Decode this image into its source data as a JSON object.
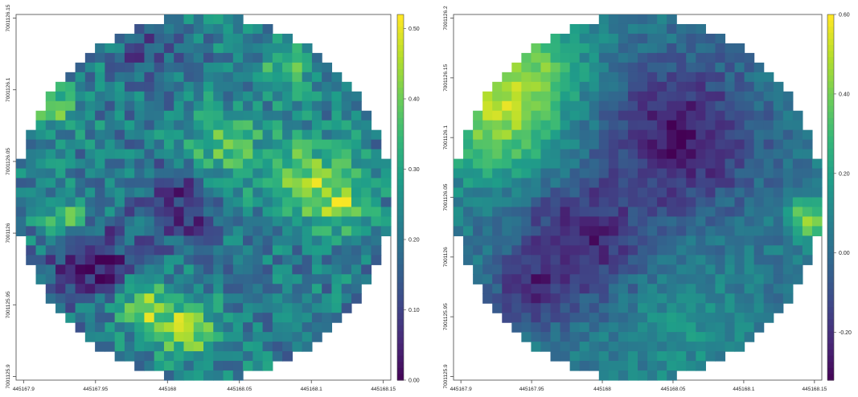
{
  "chart_data": [
    {
      "type": "heatmap",
      "title": "",
      "xlabel": "",
      "ylabel": "",
      "x_ticks": [
        "445167.9",
        "445167.95",
        "445168",
        "445168.05",
        "445168.1",
        "445168.15"
      ],
      "y_ticks": [
        "7001125.9",
        "7001125.95",
        "7001126",
        "7001126.05",
        "7001126.1",
        "7001126.15"
      ],
      "colorbar": {
        "ticks": [
          "0.00",
          "0.10",
          "0.20",
          "0.30",
          "0.40",
          "0.50"
        ],
        "range": [
          0,
          0.52
        ],
        "colormap": "viridis"
      },
      "grid": false,
      "mask": "circle",
      "value_pattern": "mottled values mostly 0.10–0.35 with bright patches up to ~0.50 near the rim and lower-middle; dark minimum near 0.00 left of centre below middle"
    },
    {
      "type": "heatmap",
      "title": "",
      "xlabel": "",
      "ylabel": "",
      "x_ticks": [
        "445167.9",
        "445167.95",
        "445168",
        "445168.05",
        "445168.1",
        "445168.15"
      ],
      "y_ticks": [
        "7001125.9",
        "7001125.95",
        "7001126",
        "7001126.05",
        "7001126.1",
        "7001126.15",
        "7001126.2"
      ],
      "colorbar": {
        "ticks": [
          "-0.20",
          "0.00",
          "0.20",
          "0.40",
          "0.60"
        ],
        "range": [
          -0.32,
          0.6
        ],
        "colormap": "viridis"
      },
      "grid": false,
      "mask": "circle",
      "value_pattern": "high values (~0.4–0.6) along upper-left edge and a small bright patch on right edge; broad low band (~-0.2 to -0.3) running diagonally from upper-right to lower-left through centre"
    }
  ]
}
